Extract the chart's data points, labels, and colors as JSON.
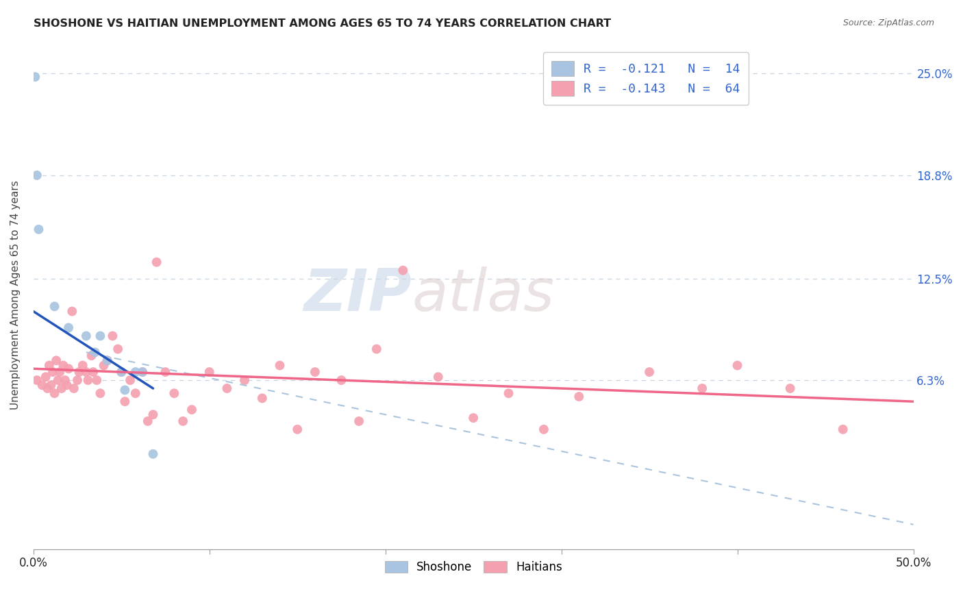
{
  "title": "SHOSHONE VS HAITIAN UNEMPLOYMENT AMONG AGES 65 TO 74 YEARS CORRELATION CHART",
  "source": "Source: ZipAtlas.com",
  "ylabel": "Unemployment Among Ages 65 to 74 years",
  "ytick_labels": [
    "25.0%",
    "18.8%",
    "12.5%",
    "6.3%"
  ],
  "ytick_values": [
    0.25,
    0.188,
    0.125,
    0.063
  ],
  "xlim": [
    0.0,
    0.5
  ],
  "ylim": [
    -0.04,
    0.27
  ],
  "background_color": "#ffffff",
  "shoshone_color": "#a8c4e0",
  "haitian_color": "#f4a0b0",
  "shoshone_line_color": "#2255bb",
  "haitian_line_color": "#ee6688",
  "dashed_line_color": "#aac4dd",
  "legend_r_shoshone": "R =  -0.121   N =  14",
  "legend_r_haitian": "R =  -0.143   N =  64",
  "shoshone_scatter_x": [
    0.001,
    0.002,
    0.003,
    0.012,
    0.02,
    0.03,
    0.035,
    0.038,
    0.042,
    0.05,
    0.052,
    0.058,
    0.062,
    0.068
  ],
  "shoshone_scatter_y": [
    0.248,
    0.188,
    0.155,
    0.108,
    0.095,
    0.09,
    0.08,
    0.09,
    0.075,
    0.068,
    0.057,
    0.068,
    0.068,
    0.018
  ],
  "haitian_scatter_x": [
    0.002,
    0.005,
    0.007,
    0.008,
    0.009,
    0.01,
    0.011,
    0.012,
    0.013,
    0.014,
    0.015,
    0.016,
    0.017,
    0.018,
    0.019,
    0.02,
    0.022,
    0.023,
    0.025,
    0.026,
    0.028,
    0.03,
    0.031,
    0.033,
    0.034,
    0.036,
    0.038,
    0.04,
    0.042,
    0.045,
    0.048,
    0.05,
    0.052,
    0.055,
    0.058,
    0.062,
    0.065,
    0.068,
    0.07,
    0.075,
    0.08,
    0.085,
    0.09,
    0.1,
    0.11,
    0.12,
    0.13,
    0.14,
    0.15,
    0.16,
    0.175,
    0.185,
    0.195,
    0.21,
    0.23,
    0.25,
    0.27,
    0.29,
    0.31,
    0.35,
    0.38,
    0.4,
    0.43,
    0.46
  ],
  "haitian_scatter_y": [
    0.063,
    0.06,
    0.065,
    0.058,
    0.072,
    0.06,
    0.068,
    0.055,
    0.075,
    0.063,
    0.068,
    0.058,
    0.072,
    0.063,
    0.06,
    0.07,
    0.105,
    0.058,
    0.063,
    0.068,
    0.072,
    0.068,
    0.063,
    0.078,
    0.068,
    0.063,
    0.055,
    0.072,
    0.075,
    0.09,
    0.082,
    0.068,
    0.05,
    0.063,
    0.055,
    0.068,
    0.038,
    0.042,
    0.135,
    0.068,
    0.055,
    0.038,
    0.045,
    0.068,
    0.058,
    0.063,
    0.052,
    0.072,
    0.033,
    0.068,
    0.063,
    0.038,
    0.082,
    0.13,
    0.065,
    0.04,
    0.055,
    0.033,
    0.053,
    0.068,
    0.058,
    0.072,
    0.058,
    0.033
  ],
  "shoshone_trend_x": [
    0.0,
    0.068
  ],
  "shoshone_trend_y": [
    0.105,
    0.058
  ],
  "haitian_trend_x": [
    0.0,
    0.5
  ],
  "haitian_trend_y": [
    0.07,
    0.05
  ],
  "dashed_trend_x": [
    0.03,
    0.5
  ],
  "dashed_trend_y": [
    0.08,
    -0.025
  ],
  "watermark_zip": "ZIP",
  "watermark_atlas": "atlas",
  "marker_size": 100
}
